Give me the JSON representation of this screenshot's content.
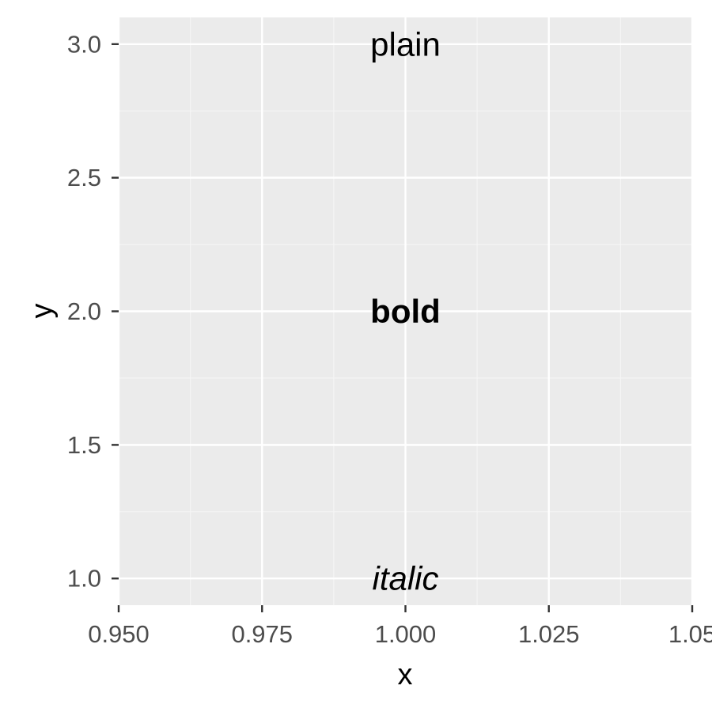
{
  "chart_data": {
    "type": "scatter",
    "title": "",
    "xlabel": "x",
    "ylabel": "y",
    "xlim": [
      0.95,
      1.05
    ],
    "ylim": [
      0.9,
      3.1
    ],
    "x_ticks": [
      0.95,
      0.975,
      1.0,
      1.025,
      1.05
    ],
    "x_tick_labels": [
      "0.950",
      "0.975",
      "1.000",
      "1.025",
      "1.05"
    ],
    "y_ticks": [
      1.0,
      1.5,
      2.0,
      2.5,
      3.0
    ],
    "y_tick_labels": [
      "1.0",
      "1.5",
      "2.0",
      "2.5",
      "3.0"
    ],
    "grid": true,
    "points": [
      {
        "x": 1.0,
        "y": 3.0,
        "label": "plain",
        "fontface": "plain"
      },
      {
        "x": 1.0,
        "y": 2.0,
        "label": "bold",
        "fontface": "bold"
      },
      {
        "x": 1.0,
        "y": 1.0,
        "label": "italic",
        "fontface": "italic"
      }
    ],
    "colors": {
      "panel_background": "#EBEBEB",
      "grid_major": "#FFFFFF",
      "grid_minor": "#F5F5F5",
      "tick_mark": "#333333",
      "tick_label": "#4D4D4D",
      "text": "#000000"
    }
  }
}
